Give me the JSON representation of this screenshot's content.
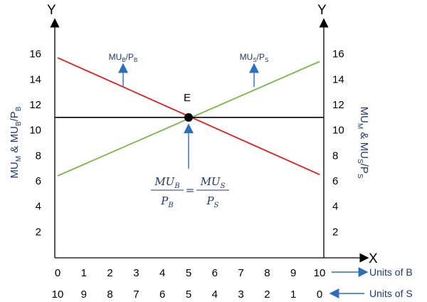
{
  "chart_data": {
    "type": "line",
    "axis_letters": {
      "y_left": "Y",
      "y_right": "Y",
      "x": "X"
    },
    "ylabel_left": {
      "base": "MU",
      "sub1": "M",
      "mid": " & MU",
      "sub2": "B",
      "tail": "/P",
      "sub3": "B"
    },
    "ylabel_right": {
      "base": "MU",
      "sub1": "M",
      "mid": " & MU",
      "sub2": "S",
      "tail": "/P",
      "sub3": "S"
    },
    "y_ticks": [
      "2",
      "4",
      "6",
      "8",
      "10",
      "12",
      "14",
      "16"
    ],
    "ylim": [
      0,
      18
    ],
    "x_axis_b": {
      "label": "Units of B",
      "ticks": [
        "0",
        "1",
        "2",
        "3",
        "4",
        "5",
        "6",
        "7",
        "8",
        "9",
        "10"
      ]
    },
    "x_axis_s": {
      "label": "Units of S",
      "ticks": [
        "10",
        "9",
        "8",
        "7",
        "6",
        "5",
        "4",
        "3",
        "2",
        "1",
        "0"
      ]
    },
    "xlim": [
      0,
      10
    ],
    "series": [
      {
        "key": "mub",
        "color": "#e02020",
        "x": [
          0,
          10
        ],
        "y": [
          15.7,
          6.5
        ]
      },
      {
        "key": "mus",
        "color": "#7ab648",
        "x": [
          0,
          10
        ],
        "y": [
          6.4,
          15.4
        ]
      },
      {
        "key": "mum",
        "color": "#000000",
        "x": [
          0,
          10
        ],
        "y": [
          11,
          11
        ]
      }
    ],
    "curve_labels": {
      "mub": {
        "base": "MU",
        "sub": "B",
        "tail": "/P",
        "sub2": "B",
        "x": 2.5,
        "y": 13.4
      },
      "mus": {
        "base": "MU",
        "sub": "S",
        "tail": "/P",
        "sub2": "S",
        "x": 7.5,
        "y": 13.4
      }
    },
    "equilibrium": {
      "label": "E",
      "x": 5,
      "y": 11,
      "equation": {
        "num_left": "MU",
        "num_left_sub": "B",
        "den_left": "P",
        "den_left_sub": "B",
        "sign": "=",
        "num_right": "MU",
        "num_right_sub": "S",
        "den_right": "P",
        "den_right_sub": "S"
      }
    }
  },
  "colors": {
    "annotation": "#1f3a6e",
    "arrow": "#2e6fbd"
  }
}
